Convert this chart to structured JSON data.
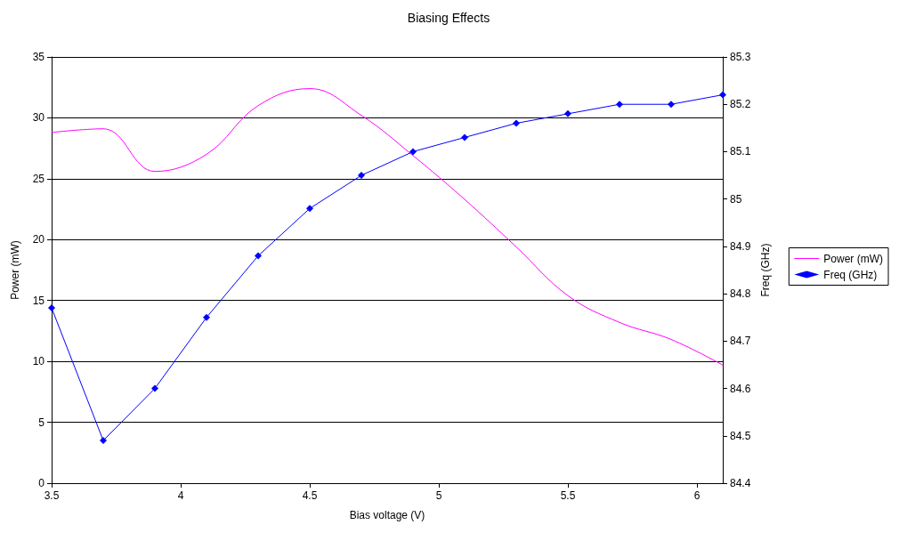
{
  "chart_data": {
    "type": "line",
    "title": "Biasing Effects",
    "xlabel": "Bias voltage (V)",
    "ylabel": "Power (mW)",
    "y2label": "Freq (GHz)",
    "x": [
      3.5,
      3.7,
      3.9,
      4.1,
      4.3,
      4.5,
      4.7,
      4.9,
      5.1,
      5.3,
      5.5,
      5.7,
      5.9,
      6.1
    ],
    "series": [
      {
        "name": "Power (mW)",
        "color": "#ff00ff",
        "marker": "none",
        "values": [
          28.8,
          29.1,
          25.6,
          27.0,
          31.0,
          32.4,
          30.2,
          26.9,
          23.3,
          19.4,
          15.4,
          13.2,
          11.8,
          9.7
        ]
      },
      {
        "name": "Freq (GHz)",
        "color": "#0000ff",
        "marker": "diamond",
        "axis": "y2",
        "values": [
          84.77,
          84.49,
          84.6,
          84.75,
          84.88,
          84.98,
          85.05,
          85.1,
          85.13,
          85.16,
          85.18,
          85.2,
          85.2,
          85.22
        ]
      }
    ],
    "xlim": [
      3.5,
      6.1
    ],
    "xticks": [
      3.5,
      4,
      4.5,
      5,
      5.5,
      6
    ],
    "ylim": [
      0,
      35
    ],
    "yticks": [
      0,
      5,
      10,
      15,
      20,
      25,
      30,
      35
    ],
    "y2lim": [
      84.4,
      85.3
    ],
    "y2ticks": [
      84.4,
      84.5,
      84.6,
      84.7,
      84.8,
      84.9,
      85,
      85.1,
      85.2,
      85.3
    ],
    "grid": "y",
    "legend": "right",
    "line_style": "solid"
  }
}
